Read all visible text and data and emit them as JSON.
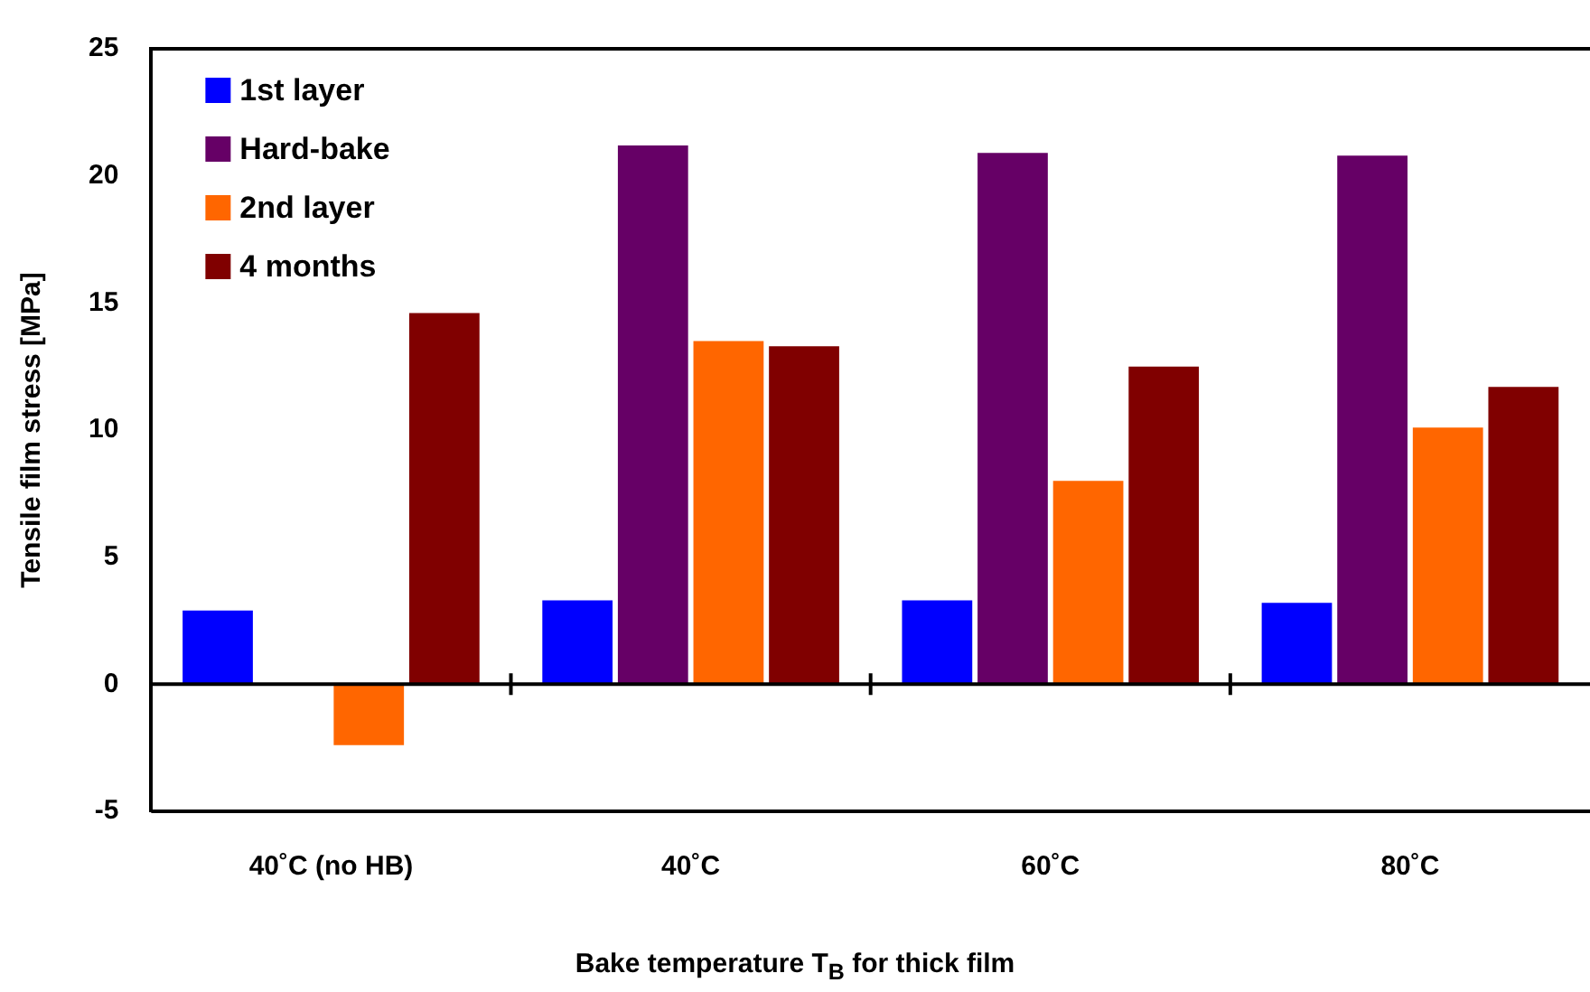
{
  "chart_data": {
    "type": "bar",
    "xlabel": "Bake temperature T$_{B}$ for thick film",
    "ylabel": "Tensile film stress [MPa]",
    "categories": [
      "40˚C (no HB)",
      "40˚C",
      "60˚C",
      "80˚C"
    ],
    "series": [
      {
        "name": "1st layer",
        "color": "#0000ff",
        "values": [
          2.9,
          3.3,
          3.3,
          3.2
        ]
      },
      {
        "name": "Hard-bake",
        "color": "#660066",
        "values": [
          null,
          21.2,
          20.9,
          20.8
        ]
      },
      {
        "name": "2nd layer",
        "color": "#ff6600",
        "values": [
          -2.4,
          13.5,
          8.0,
          10.1
        ]
      },
      {
        "name": "4 months",
        "color": "#800000",
        "values": [
          14.6,
          13.3,
          12.5,
          11.7
        ]
      }
    ],
    "ylim": [
      -5,
      25
    ],
    "yticks": [
      -5,
      0,
      5,
      10,
      15,
      20,
      25
    ],
    "legend": "top left"
  }
}
